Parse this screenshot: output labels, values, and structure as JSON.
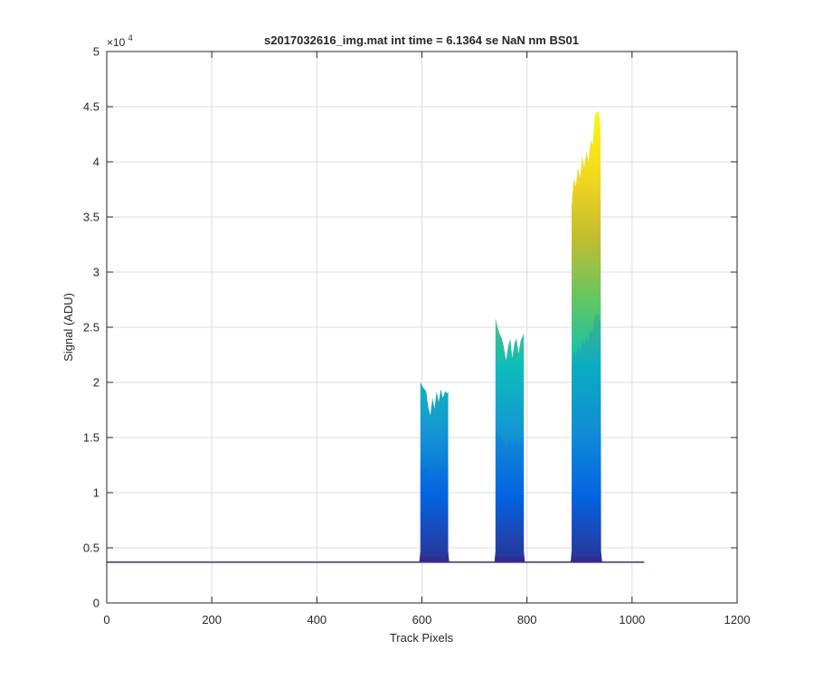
{
  "chart_data": {
    "type": "area",
    "title": "s2017032616_img.mat int time = 6.1364 se  NaN nm BS01",
    "xlabel": "Track Pixels",
    "ylabel": "Signal (ADU)",
    "exponent_label": "×10",
    "exponent_power": "4",
    "xlim": [
      0,
      1200
    ],
    "ylim": [
      0,
      5
    ],
    "y_units_multiplier": 10000,
    "grid": true,
    "x_ticks": [
      0,
      200,
      400,
      600,
      800,
      1000,
      1200
    ],
    "y_ticks": [
      0,
      0.5,
      1,
      1.5,
      2,
      2.5,
      3,
      3.5,
      4,
      4.5,
      5
    ],
    "x_tick_labels": [
      "0",
      "200",
      "400",
      "600",
      "800",
      "1000",
      "1200"
    ],
    "y_tick_labels": [
      "0",
      "0.5",
      "1",
      "1.5",
      "2",
      "2.5",
      "3",
      "3.5",
      "4",
      "4.5",
      "5"
    ],
    "baseline": 0.37,
    "x_range": [
      0,
      1023
    ],
    "colormap": [
      "#352a87",
      "#0363e1",
      "#1496d4",
      "#0dbcbc",
      "#5cc863",
      "#c3bd2e",
      "#f5d91e",
      "#f9fb0e"
    ],
    "peaks": [
      {
        "x_start": 595,
        "x_end": 652,
        "upper_envelope": [
          [
            597,
            2.0
          ],
          [
            603,
            1.95
          ],
          [
            608,
            1.92
          ],
          [
            612,
            1.78
          ],
          [
            616,
            1.7
          ],
          [
            620,
            1.86
          ],
          [
            624,
            1.76
          ],
          [
            628,
            1.92
          ],
          [
            632,
            1.82
          ],
          [
            636,
            1.94
          ],
          [
            640,
            1.86
          ],
          [
            644,
            1.92
          ],
          [
            648,
            1.9
          ],
          [
            650,
            1.92
          ]
        ]
      },
      {
        "x_start": 738,
        "x_end": 796,
        "upper_envelope": [
          [
            740,
            2.58
          ],
          [
            744,
            2.5
          ],
          [
            748,
            2.44
          ],
          [
            752,
            2.4
          ],
          [
            756,
            2.32
          ],
          [
            760,
            2.2
          ],
          [
            764,
            2.32
          ],
          [
            768,
            2.4
          ],
          [
            772,
            2.22
          ],
          [
            776,
            2.35
          ],
          [
            780,
            2.4
          ],
          [
            784,
            2.26
          ],
          [
            788,
            2.38
          ],
          [
            792,
            2.42
          ],
          [
            794,
            2.45
          ]
        ]
      },
      {
        "x_start": 883,
        "x_end": 943,
        "upper_envelope": [
          [
            885,
            3.6
          ],
          [
            889,
            3.85
          ],
          [
            893,
            3.78
          ],
          [
            897,
            3.95
          ],
          [
            901,
            3.85
          ],
          [
            905,
            4.05
          ],
          [
            909,
            3.95
          ],
          [
            913,
            4.1
          ],
          [
            917,
            4.0
          ],
          [
            921,
            4.2
          ],
          [
            925,
            4.15
          ],
          [
            929,
            4.42
          ],
          [
            933,
            4.46
          ],
          [
            937,
            4.45
          ],
          [
            940,
            4.3
          ]
        ]
      }
    ]
  }
}
